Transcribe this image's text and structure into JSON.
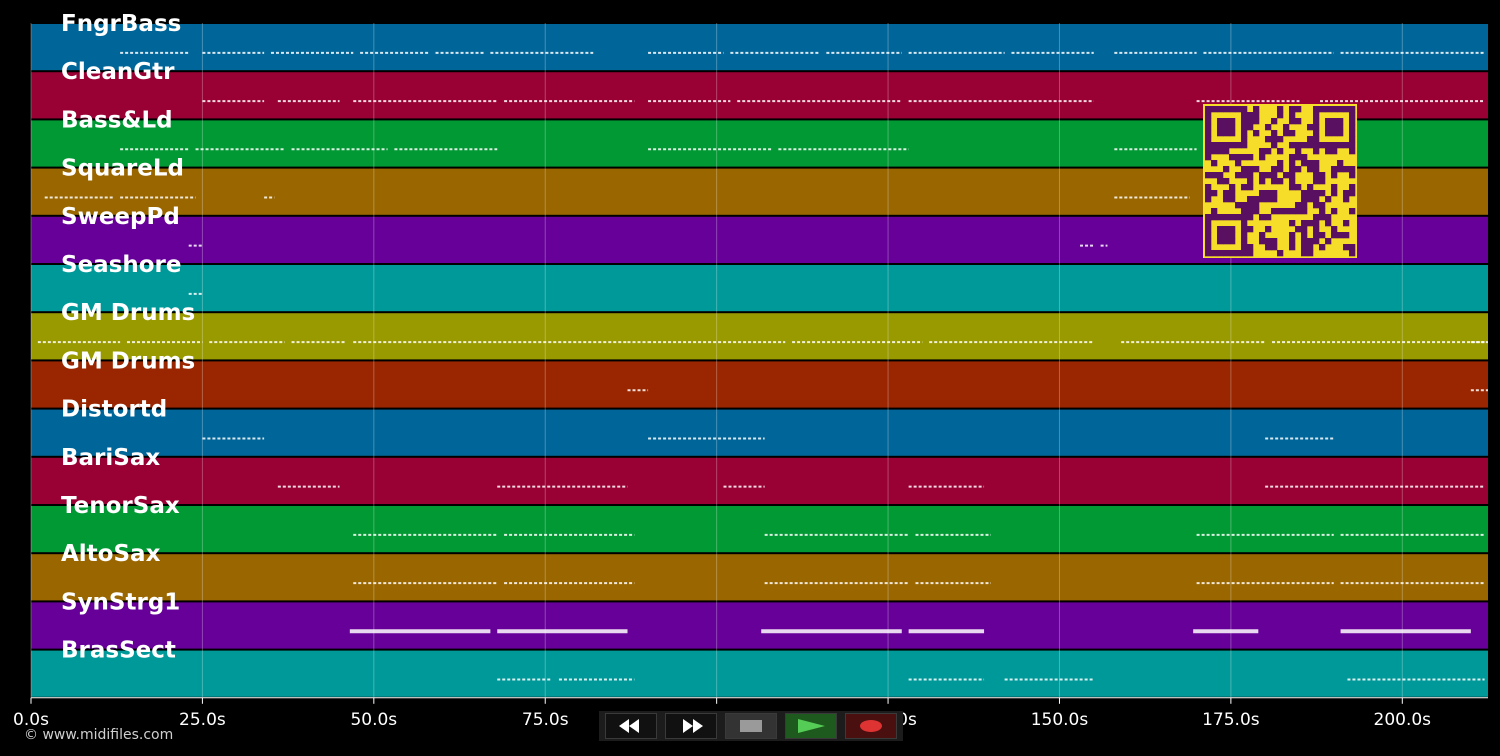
{
  "tracks": [
    {
      "name": "FngrBass",
      "color": "#006699"
    },
    {
      "name": "CleanGtr",
      "color": "#990033"
    },
    {
      "name": "Bass&Ld",
      "color": "#009933"
    },
    {
      "name": "SquareLd",
      "color": "#996600"
    },
    {
      "name": "SweepPd",
      "color": "#660099"
    },
    {
      "name": "Seashore",
      "color": "#009999"
    },
    {
      "name": "GM Drums",
      "color": "#999900"
    },
    {
      "name": "GM Drums",
      "color": "#992600"
    },
    {
      "name": "Distortd",
      "color": "#006699"
    },
    {
      "name": "BariSax",
      "color": "#990033"
    },
    {
      "name": "TenorSax",
      "color": "#009933"
    },
    {
      "name": "AltoSax",
      "color": "#996600"
    },
    {
      "name": "SynStrg1",
      "color": "#660099"
    },
    {
      "name": "BrasSect",
      "color": "#009999"
    }
  ],
  "timeline": {
    "duration_s": 212.5,
    "ticks": [
      "0.0s",
      "25.0s",
      "50.0s",
      "75.0s",
      "100.0s",
      "125.0s",
      "150.0s",
      "175.0s",
      "200.0s"
    ],
    "tick_values": [
      0,
      25,
      50,
      75,
      100,
      125,
      150,
      175,
      200
    ]
  },
  "notes": [
    {
      "track": 0,
      "segments": [
        [
          13,
          23
        ],
        [
          25,
          34
        ],
        [
          35,
          47
        ],
        [
          48,
          58
        ],
        [
          59,
          66
        ],
        [
          67,
          82
        ],
        [
          90,
          101
        ],
        [
          102,
          115
        ],
        [
          116,
          127
        ],
        [
          128,
          142
        ],
        [
          143,
          155
        ],
        [
          158,
          170
        ],
        [
          171,
          190
        ],
        [
          191,
          212
        ]
      ]
    },
    {
      "track": 1,
      "segments": [
        [
          25,
          34
        ],
        [
          36,
          45
        ],
        [
          47,
          68
        ],
        [
          69,
          88
        ],
        [
          90,
          102
        ],
        [
          103,
          127
        ],
        [
          128,
          155
        ],
        [
          170,
          185
        ],
        [
          188,
          212
        ]
      ]
    },
    {
      "track": 2,
      "segments": [
        [
          13,
          23
        ],
        [
          24,
          37
        ],
        [
          38,
          52
        ],
        [
          53,
          68
        ],
        [
          90,
          108
        ],
        [
          109,
          128
        ],
        [
          158,
          170
        ]
      ]
    },
    {
      "track": 3,
      "segments": [
        [
          2,
          12
        ],
        [
          13,
          24
        ],
        [
          34,
          35.5
        ],
        [
          158,
          169
        ]
      ]
    },
    {
      "track": 4,
      "segments": [
        [
          23,
          25
        ],
        [
          153,
          155
        ],
        [
          156,
          157
        ]
      ]
    },
    {
      "track": 5,
      "segments": [
        [
          23,
          25
        ]
      ]
    },
    {
      "track": 6,
      "segments": [
        [
          1,
          13
        ],
        [
          14,
          25
        ],
        [
          26,
          37
        ],
        [
          38,
          46
        ],
        [
          47,
          87
        ],
        [
          90,
          110
        ],
        [
          111,
          130
        ],
        [
          131,
          155
        ],
        [
          159,
          180
        ],
        [
          181,
          212
        ],
        [
          87,
          90
        ],
        [
          210,
          212.5
        ]
      ]
    },
    {
      "track": 7,
      "segments": [
        [
          87,
          90
        ],
        [
          210,
          212.5
        ]
      ]
    },
    {
      "track": 8,
      "segments": [
        [
          25,
          34
        ],
        [
          90,
          107
        ],
        [
          180,
          190
        ]
      ]
    },
    {
      "track": 9,
      "segments": [
        [
          36,
          45
        ],
        [
          68,
          87
        ],
        [
          101,
          107
        ],
        [
          128,
          139
        ],
        [
          180,
          212
        ]
      ]
    },
    {
      "track": 10,
      "segments": [
        [
          47,
          68
        ],
        [
          69,
          88
        ],
        [
          107,
          128
        ],
        [
          129,
          140
        ],
        [
          170,
          190
        ],
        [
          191,
          212
        ]
      ]
    },
    {
      "track": 11,
      "segments": [
        [
          47,
          68
        ],
        [
          69,
          88
        ],
        [
          107,
          128
        ],
        [
          129,
          140
        ],
        [
          170,
          190
        ],
        [
          191,
          212
        ]
      ]
    },
    {
      "track": 12,
      "segments": [
        [
          46.5,
          67
        ],
        [
          68,
          87
        ],
        [
          106.5,
          127
        ],
        [
          128,
          139
        ],
        [
          169.5,
          179
        ],
        [
          191,
          210
        ]
      ]
    },
    {
      "track": 13,
      "segments": [
        [
          68,
          76
        ],
        [
          77,
          88
        ],
        [
          128,
          139
        ],
        [
          142,
          155
        ],
        [
          192,
          212
        ]
      ]
    }
  ],
  "qr": {
    "fg": "#5a1060",
    "bg": "#f5dd2a"
  },
  "copyright": "© www.midifiles.com",
  "transport": {
    "buttons": [
      {
        "name": "rewind",
        "icon": "rewind-icon",
        "color": "#ffffff",
        "bg": "#111111"
      },
      {
        "name": "forward",
        "icon": "forward-icon",
        "color": "#ffffff",
        "bg": "#111111"
      },
      {
        "name": "stop",
        "icon": "stop-icon",
        "color": "#9a9a9a",
        "bg": "#333333"
      },
      {
        "name": "play",
        "icon": "play-icon",
        "color": "#55cc55",
        "bg": "#1e5a1e"
      },
      {
        "name": "record",
        "icon": "record-icon",
        "color": "#dd3333",
        "bg": "#4a1010"
      }
    ]
  }
}
